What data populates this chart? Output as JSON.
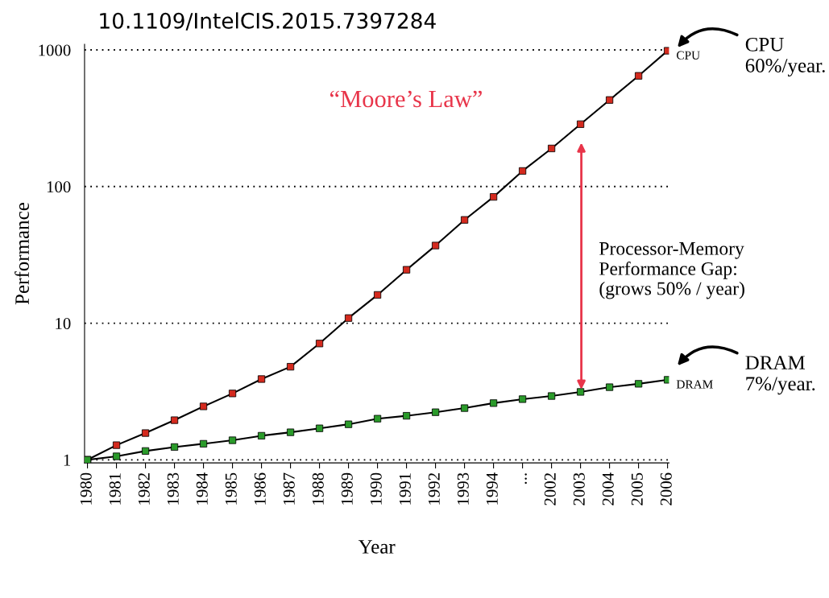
{
  "chart_data": {
    "type": "line",
    "xlabel": "Year",
    "ylabel": "Performance",
    "categories": [
      "1980",
      "1981",
      "1982",
      "1983",
      "1984",
      "1985",
      "1986",
      "1987",
      "1988",
      "1989",
      "1990",
      "1991",
      "1992",
      "1993",
      "1994",
      "...",
      "2002",
      "2003",
      "2004",
      "2005",
      "2006"
    ],
    "series": [
      {
        "color": "#d42a1e",
        "values": [
          1,
          1.28,
          1.57,
          1.95,
          2.46,
          3.06,
          3.9,
          4.8,
          7.1,
          10.9,
          16.1,
          24.6,
          37,
          57,
          84,
          130,
          190,
          286,
          430,
          646,
          986
        ]
      },
      {
        "color": "#2a9a2a",
        "values": [
          1,
          1.06,
          1.16,
          1.24,
          1.31,
          1.39,
          1.5,
          1.59,
          1.7,
          1.82,
          2.0,
          2.1,
          2.23,
          2.39,
          2.6,
          2.78,
          2.93,
          3.14,
          3.4,
          3.6,
          3.85
        ]
      }
    ],
    "log": true,
    "ylim": [
      0.95,
      1100
    ],
    "yticks": [
      1,
      10,
      100,
      1000
    ],
    "grid": "y",
    "marker": "square",
    "line_style": "solid",
    "legend": false,
    "annotations": [
      "10.1109/IntelCIS.2015.7397284",
      "CPU\n60%/year.",
      "DRAM\n7%/year.",
      "“Moore’s Law”",
      "Processor-Memory\nPerformance Gap:\n(grows 50% / year)",
      {
        "text": "CPU",
        "x": "2006",
        "y": 986
      },
      {
        "text": "DRAM",
        "x": "2006",
        "y": 3.85
      }
    ]
  }
}
